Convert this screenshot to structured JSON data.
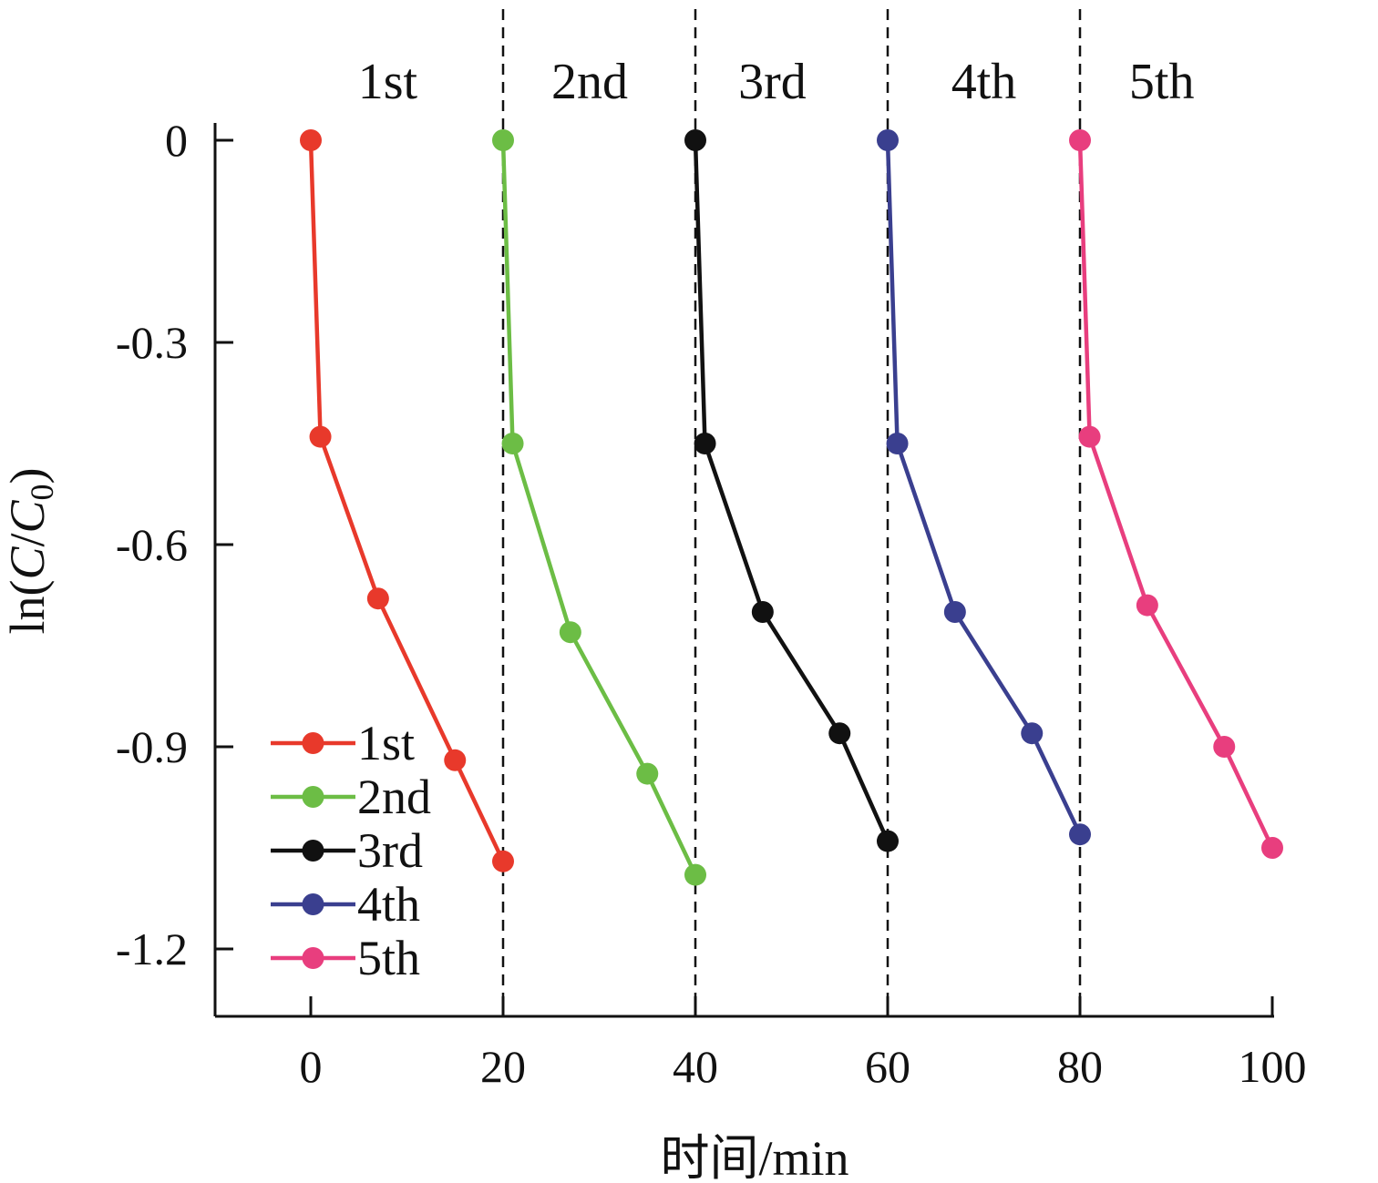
{
  "chart_data": {
    "type": "line",
    "title": "",
    "xlabel": "时间/min",
    "ylabel": "ln(C/C0)",
    "ylabel_parts": {
      "prefix": "ln(",
      "c1": "C",
      "slash": "/",
      "c2": "C",
      "sub": "0",
      "suffix": ")"
    },
    "xlim": [
      -10,
      100
    ],
    "ylim": [
      -1.3,
      0
    ],
    "x_ticks": [
      0,
      20,
      40,
      60,
      80,
      100
    ],
    "x_tick_labels": [
      "0",
      "20",
      "40",
      "60",
      "80",
      "100"
    ],
    "y_ticks": [
      0,
      -0.3,
      -0.6,
      -0.9,
      -1.2
    ],
    "y_tick_labels": [
      "0",
      "-0.3",
      "-0.6",
      "-0.9",
      "-1.2"
    ],
    "grid": false,
    "legend_position": "bottom-left",
    "cycle_boundaries": [
      20,
      40,
      60,
      80
    ],
    "cycle_labels": [
      {
        "label": "1st",
        "x": 8
      },
      {
        "label": "2nd",
        "x": 29
      },
      {
        "label": "3rd",
        "x": 48
      },
      {
        "label": "4th",
        "x": 70
      },
      {
        "label": "5th",
        "x": 88.5
      }
    ],
    "series": [
      {
        "name": "1st",
        "color": "#e8392b",
        "x": [
          0,
          1,
          7,
          15,
          20
        ],
        "y": [
          0,
          -0.44,
          -0.68,
          -0.92,
          -1.07
        ]
      },
      {
        "name": "2nd",
        "color": "#6cbd45",
        "x": [
          20,
          21,
          27,
          35,
          40
        ],
        "y": [
          0,
          -0.45,
          -0.73,
          -0.94,
          -1.09
        ]
      },
      {
        "name": "3rd",
        "color": "#111111",
        "x": [
          40,
          41,
          47,
          55,
          60
        ],
        "y": [
          0,
          -0.45,
          -0.7,
          -0.88,
          -1.04
        ]
      },
      {
        "name": "4th",
        "color": "#3a3f8f",
        "x": [
          60,
          61,
          67,
          75,
          80
        ],
        "y": [
          0,
          -0.45,
          -0.7,
          -0.88,
          -1.03
        ]
      },
      {
        "name": "5th",
        "color": "#e83e7e",
        "x": [
          80,
          81,
          87,
          95,
          100
        ],
        "y": [
          0,
          -0.44,
          -0.69,
          -0.9,
          -1.05
        ]
      }
    ]
  }
}
